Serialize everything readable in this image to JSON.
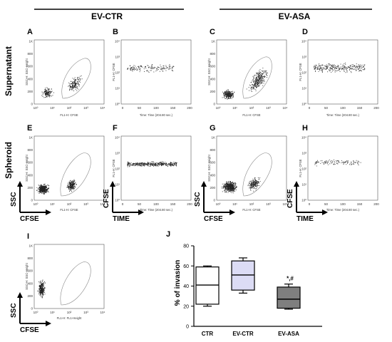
{
  "headers": {
    "left": "EV-CTR",
    "right": "EV-ASA"
  },
  "rows": {
    "supernatant": "Supernatant",
    "spheroid": "Spheroid"
  },
  "panels": {
    "A": {
      "letter": "A",
      "ylabel": "SSC-H: SSC-Height",
      "xlabel": "FL1-H: CFSE"
    },
    "B": {
      "letter": "B",
      "ylabel": "FL1-H: CFSE",
      "xlabel": "Time: Time (204.80 sec.)"
    },
    "C": {
      "letter": "C",
      "ylabel": "SSC-H: SSC-Height",
      "xlabel": "FL1-H: CFSE"
    },
    "D": {
      "letter": "D",
      "ylabel": "FL1-H: CFSE",
      "xlabel": "Time: Time (204.80 sec.)"
    },
    "E": {
      "letter": "E",
      "ylabel": "SSC-H: SSC-Height",
      "xlabel": "FL1-H: CFSE"
    },
    "F": {
      "letter": "F",
      "ylabel": "FL1-H: CFSE",
      "xlabel": "Time: Time (204.80 sec.)"
    },
    "G": {
      "letter": "G",
      "ylabel": "SSC-H: SSC-Height",
      "xlabel": "FL1-H: CFSE"
    },
    "H": {
      "letter": "H",
      "ylabel": "FL1-H: CFSE",
      "xlabel": "Time: Time (204.80 sec.)"
    },
    "I": {
      "letter": "I",
      "ylabel": "SSC-H: SSC-Height",
      "xlabel": "FL1-H: FL1-Height"
    }
  },
  "scatter_ticks": {
    "y": [
      "1K",
      "800",
      "600",
      "400",
      "200",
      "0"
    ],
    "x": [
      "10⁰",
      "10¹",
      "10²",
      "10³",
      "10⁴"
    ]
  },
  "time_ticks": {
    "y": [
      "10⁴",
      "10³",
      "10²",
      "10¹",
      "10⁰"
    ],
    "x": [
      "0",
      "50",
      "100",
      "150",
      "200"
    ]
  },
  "arrow_labels": {
    "ssc": "SSC",
    "cfse": "CFSE",
    "time": "TIME"
  },
  "chart_data": {
    "type": "box",
    "letter": "J",
    "ylabel": "% of invasion",
    "ylim": [
      0,
      80
    ],
    "yticks": [
      "0",
      "20",
      "40",
      "60",
      "80"
    ],
    "categories": [
      "CTR",
      "EV-CTR",
      "EV-ASA"
    ],
    "boxes": [
      {
        "name": "CTR",
        "min": 20,
        "q1": 22,
        "median": 41,
        "q3": 59,
        "max": 60,
        "color": "#ffffff"
      },
      {
        "name": "EV-CTR",
        "min": 33,
        "q1": 36,
        "median": 51,
        "q3": 65,
        "max": 68,
        "color": "#dcdcf5"
      },
      {
        "name": "EV-ASA",
        "min": 17,
        "q1": 18,
        "median": 27,
        "q3": 39,
        "max": 42,
        "color": "#7f7f7f"
      }
    ],
    "annotation": "*,#"
  }
}
